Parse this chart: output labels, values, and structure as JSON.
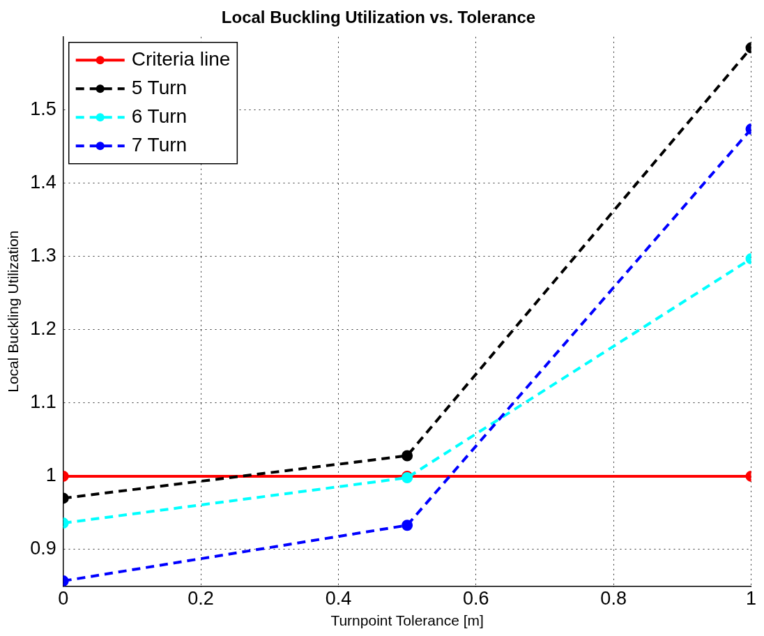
{
  "chart_data": {
    "type": "line",
    "title": "Local Buckling Utilization vs. Tolerance",
    "xlabel": "Turnpoint Tolerance [m]",
    "ylabel": "Local Buckling Utilization",
    "x": [
      0,
      0.5,
      1
    ],
    "series": [
      {
        "name": "Criteria line",
        "color": "#ff0000",
        "values": [
          1,
          1,
          1
        ],
        "line_style": "solid"
      },
      {
        "name": "5 Turn",
        "color": "#000000",
        "values": [
          0.97,
          1.028,
          1.585
        ],
        "line_style": "dashed"
      },
      {
        "name": "6 Turn",
        "color": "#00ffff",
        "values": [
          0.936,
          0.998,
          1.297
        ],
        "line_style": "dashed"
      },
      {
        "name": "7 Turn",
        "color": "#0000ff",
        "values": [
          0.857,
          0.933,
          1.474
        ],
        "line_style": "dashed"
      }
    ],
    "xlim": [
      0,
      1
    ],
    "xticks": [
      0,
      0.2,
      0.4,
      0.6,
      0.8,
      1
    ],
    "ylim": [
      0.85,
      1.6
    ],
    "yticks": [
      0.9,
      1,
      1.1,
      1.2,
      1.3,
      1.4,
      1.5
    ],
    "grid": true,
    "legend": "top left",
    "marker": "circle"
  }
}
